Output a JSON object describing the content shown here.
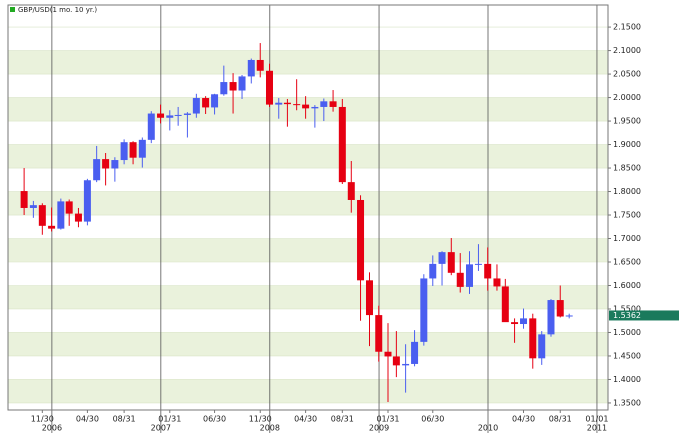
{
  "chart_data": {
    "type": "candlestick",
    "title": "GBP/USD(1 mo. 10 yr.)",
    "title_marker_color": "#22aa22",
    "up_color": "#4a5ef0",
    "down_color": "#e60012",
    "x": [
      "2005-09-30",
      "2005-10-31",
      "2005-11-30",
      "2005-12-31",
      "2006-01-31",
      "2006-02-28",
      "2006-03-31",
      "2006-04-30",
      "2006-05-31",
      "2006-06-30",
      "2006-07-31",
      "2006-08-31",
      "2006-09-30",
      "2006-10-31",
      "2006-11-30",
      "2006-12-31",
      "2007-01-31",
      "2007-02-28",
      "2007-03-31",
      "2007-04-30",
      "2007-05-31",
      "2007-06-30",
      "2007-07-31",
      "2007-08-31",
      "2007-09-30",
      "2007-10-31",
      "2007-11-30",
      "2007-12-31",
      "2008-01-31",
      "2008-02-29",
      "2008-03-31",
      "2008-04-30",
      "2008-05-31",
      "2008-06-30",
      "2008-07-31",
      "2008-08-31",
      "2008-09-30",
      "2008-10-31",
      "2008-11-30",
      "2008-12-31",
      "2009-01-31",
      "2009-02-28",
      "2009-03-31",
      "2009-04-30",
      "2009-05-31",
      "2009-06-30",
      "2009-07-31",
      "2009-08-31",
      "2009-09-30",
      "2009-10-31",
      "2009-11-30",
      "2009-12-31",
      "2010-01-31",
      "2010-02-28",
      "2010-03-31",
      "2010-04-30",
      "2010-05-31",
      "2010-06-30",
      "2010-07-31",
      "2010-08-31",
      "2010-09-30"
    ],
    "open": [
      1.801,
      1.765,
      1.771,
      1.727,
      1.721,
      1.779,
      1.753,
      1.736,
      1.824,
      1.869,
      1.849,
      1.867,
      1.905,
      1.872,
      1.91,
      1.966,
      1.957,
      1.962,
      1.963,
      1.966,
      1.999,
      1.979,
      2.007,
      2.033,
      2.015,
      2.045,
      2.08,
      2.057,
      1.985,
      1.989,
      1.986,
      1.985,
      1.977,
      1.98,
      1.992,
      1.98,
      1.82,
      1.782,
      1.611,
      1.537,
      1.459,
      1.449,
      1.43,
      1.433,
      1.48,
      1.615,
      1.646,
      1.671,
      1.627,
      1.597,
      1.645,
      1.646,
      1.615,
      1.598,
      1.522,
      1.518,
      1.53,
      1.445,
      1.496,
      1.569,
      1.534
    ],
    "high": [
      1.85,
      1.78,
      1.775,
      1.766,
      1.785,
      1.783,
      1.765,
      1.827,
      1.897,
      1.882,
      1.873,
      1.911,
      1.907,
      1.915,
      1.971,
      1.985,
      1.973,
      1.98,
      1.969,
      2.008,
      2.003,
      2.008,
      2.068,
      2.052,
      2.048,
      2.083,
      2.116,
      2.072,
      1.999,
      1.997,
      2.039,
      2.003,
      1.984,
      1.998,
      2.016,
      1.997,
      1.865,
      1.792,
      1.628,
      1.557,
      1.52,
      1.503,
      1.475,
      1.505,
      1.624,
      1.664,
      1.673,
      1.701,
      1.669,
      1.673,
      1.688,
      1.681,
      1.645,
      1.614,
      1.53,
      1.551,
      1.54,
      1.503,
      1.571,
      1.6,
      1.54
    ],
    "low": [
      1.75,
      1.744,
      1.708,
      1.715,
      1.719,
      1.727,
      1.724,
      1.728,
      1.82,
      1.813,
      1.821,
      1.858,
      1.858,
      1.851,
      1.903,
      1.945,
      1.93,
      1.94,
      1.915,
      1.957,
      1.965,
      1.964,
      2.004,
      1.966,
      1.997,
      2.03,
      2.043,
      1.98,
      1.955,
      1.938,
      1.973,
      1.955,
      1.936,
      1.95,
      1.97,
      1.816,
      1.755,
      1.525,
      1.471,
      1.438,
      1.352,
      1.405,
      1.372,
      1.428,
      1.472,
      1.599,
      1.6,
      1.622,
      1.585,
      1.582,
      1.631,
      1.589,
      1.589,
      1.523,
      1.478,
      1.508,
      1.423,
      1.431,
      1.491,
      1.532,
      1.53
    ],
    "close": [
      1.765,
      1.771,
      1.727,
      1.721,
      1.779,
      1.753,
      1.736,
      1.824,
      1.869,
      1.849,
      1.867,
      1.905,
      1.872,
      1.91,
      1.966,
      1.957,
      1.962,
      1.963,
      1.966,
      1.999,
      1.979,
      2.007,
      2.033,
      2.015,
      2.045,
      2.08,
      2.057,
      1.985,
      1.989,
      1.986,
      1.985,
      1.977,
      1.98,
      1.992,
      1.98,
      1.82,
      1.782,
      1.611,
      1.537,
      1.459,
      1.449,
      1.43,
      1.433,
      1.48,
      1.615,
      1.646,
      1.671,
      1.627,
      1.597,
      1.645,
      1.646,
      1.615,
      1.598,
      1.522,
      1.518,
      1.53,
      1.445,
      1.496,
      1.569,
      1.534,
      1.5362
    ],
    "last_value": 1.5362,
    "last_value_color": "#1a7a5c",
    "xlim": [
      "2005-08-07",
      "2011-02-07"
    ],
    "xticks": [
      {
        "value": "2005-11-30",
        "label": "11/30"
      },
      {
        "value": "2006-04-30",
        "label": "04/30"
      },
      {
        "value": "2006-08-31",
        "label": "08/31"
      },
      {
        "value": "2007-01-31",
        "label": "01/31"
      },
      {
        "value": "2007-06-30",
        "label": "06/30"
      },
      {
        "value": "2007-11-30",
        "label": "11/30"
      },
      {
        "value": "2008-04-30",
        "label": "04/30"
      },
      {
        "value": "2008-08-31",
        "label": "08/31"
      },
      {
        "value": "2009-01-31",
        "label": "01/31"
      },
      {
        "value": "2009-06-30",
        "label": "06/30"
      },
      {
        "value": "2010-04-30",
        "label": "04/30"
      },
      {
        "value": "2010-08-31",
        "label": "08/31"
      },
      {
        "value": "2011-01-01",
        "label": "01/01"
      }
    ],
    "year_ticks": [
      {
        "value": "2006-01-01",
        "label": "2006"
      },
      {
        "value": "2007-01-01",
        "label": "2007"
      },
      {
        "value": "2008-01-01",
        "label": "2008"
      },
      {
        "value": "2009-01-01",
        "label": "2009"
      },
      {
        "value": "2010-01-01",
        "label": "2010"
      },
      {
        "value": "2011-01-01",
        "label": "2011"
      }
    ],
    "ylim": [
      1.335,
      2.197
    ],
    "yticks": [
      {
        "value": 1.35,
        "label": "1.3500"
      },
      {
        "value": 1.4,
        "label": "1.4000"
      },
      {
        "value": 1.45,
        "label": "1.4500"
      },
      {
        "value": 1.5,
        "label": "1.5000"
      },
      {
        "value": 1.55,
        "label": "1.5500"
      },
      {
        "value": 1.6,
        "label": "1.6000"
      },
      {
        "value": 1.65,
        "label": "1.6500"
      },
      {
        "value": 1.7,
        "label": "1.7000"
      },
      {
        "value": 1.75,
        "label": "1.7500"
      },
      {
        "value": 1.8,
        "label": "1.8000"
      },
      {
        "value": 1.85,
        "label": "1.8500"
      },
      {
        "value": 1.9,
        "label": "1.9000"
      },
      {
        "value": 1.95,
        "label": "1.9500"
      },
      {
        "value": 2.0,
        "label": "2.0000"
      },
      {
        "value": 2.05,
        "label": "2.0500"
      },
      {
        "value": 2.1,
        "label": "2.1000"
      },
      {
        "value": 2.15,
        "label": "2.1500"
      }
    ],
    "grid": true
  }
}
